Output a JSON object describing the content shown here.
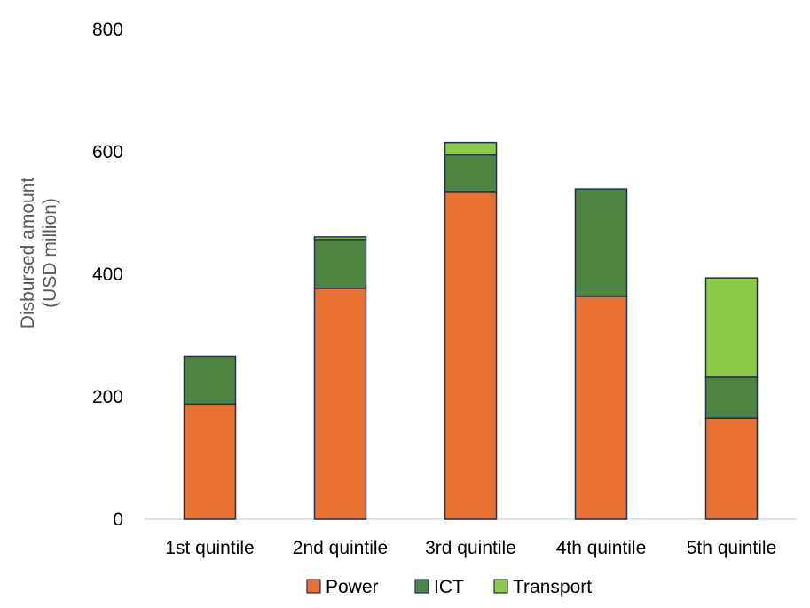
{
  "chart_data": {
    "type": "bar",
    "stacked": true,
    "categories": [
      "1st quintile",
      "2nd quintile",
      "3rd quintile",
      "4th quintile",
      "5th quintile"
    ],
    "series": [
      {
        "name": "Power",
        "color": "#E97132",
        "values": [
          188,
          377,
          535,
          364,
          165
        ]
      },
      {
        "name": "ICT",
        "color": "#4E8542",
        "values": [
          78,
          80,
          60,
          175,
          67
        ]
      },
      {
        "name": "Transport",
        "color": "#8DCB45",
        "values": [
          0,
          4,
          20,
          0,
          162
        ]
      }
    ],
    "ylabel": "Disbursed amount (USD million)",
    "ylabel_lines": [
      "Disbursed amount",
      "(USD million)"
    ],
    "yticks": [
      0,
      200,
      400,
      600,
      800
    ],
    "ylim": [
      0,
      800
    ],
    "grid": false,
    "legend_position": "bottom",
    "bar_outline_color": "#1F2E5A"
  }
}
